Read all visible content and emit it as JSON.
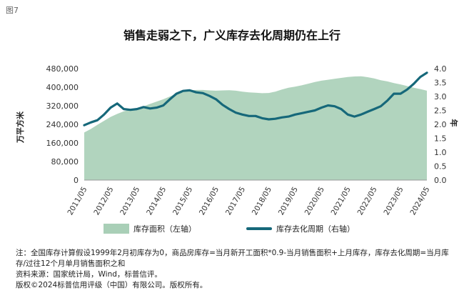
{
  "figure_label": "图7",
  "chart_data": {
    "type": "area+line",
    "title": "销售走弱之下，广义库存去化周期仍在上行",
    "ylabel_left": "万平方米",
    "ylabel_right": "年",
    "ylim_left": [
      0,
      480000
    ],
    "ylim_right": [
      0,
      4.0
    ],
    "yticks_left": [
      "0",
      "80,000",
      "160,000",
      "240,000",
      "320,000",
      "400,000",
      "480,000"
    ],
    "yticks_right": [
      "0.0",
      "0.5",
      "1.0",
      "1.5",
      "2.0",
      "2.5",
      "3.0",
      "3.5",
      "4.0"
    ],
    "x_ticks": [
      "2011/05",
      "2012/05",
      "2013/05",
      "2014/05",
      "2015/05",
      "2016/05",
      "2017/05",
      "2018/05",
      "2019/05",
      "2020/05",
      "2021/05",
      "2022/05",
      "2023/05",
      "2024/05"
    ],
    "x": [
      "2011/05",
      "2011/08",
      "2011/11",
      "2012/02",
      "2012/05",
      "2012/08",
      "2012/11",
      "2013/02",
      "2013/05",
      "2013/08",
      "2013/11",
      "2014/02",
      "2014/05",
      "2014/08",
      "2014/11",
      "2015/02",
      "2015/05",
      "2015/08",
      "2015/11",
      "2016/02",
      "2016/05",
      "2016/08",
      "2016/11",
      "2017/02",
      "2017/05",
      "2017/08",
      "2017/11",
      "2018/02",
      "2018/05",
      "2018/08",
      "2018/11",
      "2019/02",
      "2019/05",
      "2019/08",
      "2019/11",
      "2020/02",
      "2020/05",
      "2020/08",
      "2020/11",
      "2021/02",
      "2021/05",
      "2021/08",
      "2021/11",
      "2022/02",
      "2022/05",
      "2022/08",
      "2022/11",
      "2023/02",
      "2023/05",
      "2023/08",
      "2023/11",
      "2024/02",
      "2024/05"
    ],
    "series": [
      {
        "name": "库存面积（左轴）",
        "type": "area",
        "axis": "left",
        "color": "#a9cfb7",
        "values": [
          205000,
          220000,
          238000,
          255000,
          272000,
          285000,
          296000,
          304000,
          310000,
          318000,
          328000,
          338000,
          348000,
          360000,
          372000,
          380000,
          386000,
          388000,
          388000,
          386000,
          385000,
          386000,
          387000,
          385000,
          381000,
          378000,
          376000,
          374000,
          375000,
          381000,
          390000,
          398000,
          402000,
          408000,
          415000,
          422000,
          428000,
          432000,
          436000,
          440000,
          444000,
          446000,
          447000,
          443000,
          438000,
          430000,
          425000,
          418000,
          412000,
          405000,
          398000,
          392000,
          385000
        ]
      },
      {
        "name": "库存去化周期（右轴）",
        "type": "line",
        "axis": "right",
        "color": "#16687a",
        "values": [
          1.97,
          2.07,
          2.15,
          2.35,
          2.6,
          2.75,
          2.55,
          2.52,
          2.55,
          2.62,
          2.57,
          2.6,
          2.68,
          2.9,
          3.1,
          3.2,
          3.22,
          3.15,
          3.12,
          3.02,
          2.9,
          2.7,
          2.55,
          2.42,
          2.35,
          2.3,
          2.3,
          2.22,
          2.18,
          2.2,
          2.25,
          2.28,
          2.35,
          2.4,
          2.45,
          2.5,
          2.6,
          2.68,
          2.65,
          2.55,
          2.35,
          2.28,
          2.35,
          2.45,
          2.55,
          2.65,
          2.85,
          3.1,
          3.1,
          3.25,
          3.45,
          3.7,
          3.85
        ]
      }
    ],
    "legend_position": "bottom"
  },
  "notes": {
    "line1": "注：全国库存计算假设1999年2月初库存为0，商品房库存=当月新开工面积*0.9-当月销售面积+上月库存，库存去化周期=当月库存/过往12个月单月销售面积之和",
    "line2": "资料来源：国家统计局，Wind，标普信评。",
    "line3": "版权©2024标普信用评级（中国）有限公司。版权所有。"
  }
}
